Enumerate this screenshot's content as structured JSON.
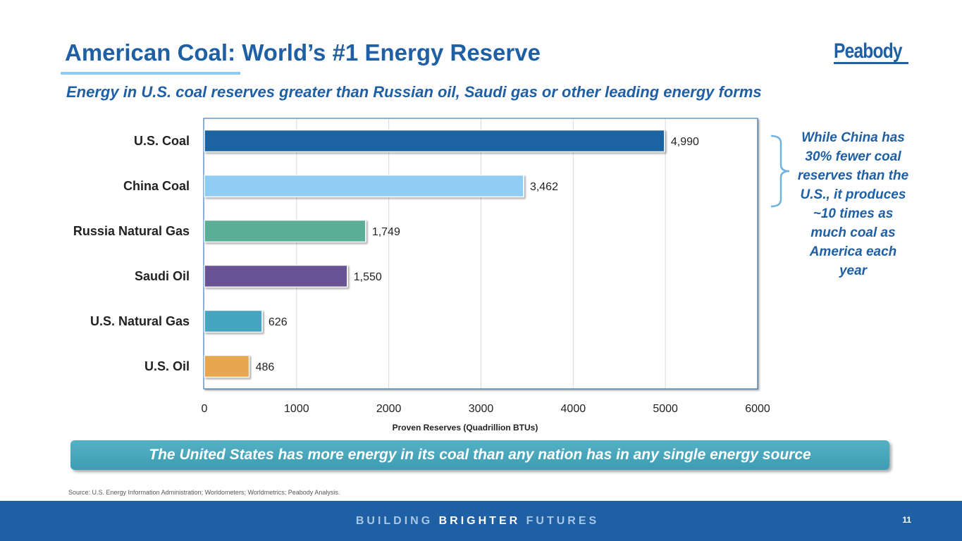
{
  "header": {
    "title": "American Coal: World’s #1 Energy Reserve",
    "subtitle": "Energy in U.S. coal reserves greater than Russian oil, Saudi gas or other leading energy forms",
    "logo_text": "Peabody"
  },
  "colors": {
    "brand_blue": "#1f5fa3",
    "accent_light_blue": "#8fcaf0",
    "banner_teal": "#46a4b9"
  },
  "chart_data": {
    "type": "bar",
    "orientation": "horizontal",
    "categories": [
      "U.S. Coal",
      "China Coal",
      "Russia Natural Gas",
      "Saudi Oil",
      "U.S. Natural Gas",
      "U.S. Oil"
    ],
    "values": [
      4990,
      3462,
      1749,
      1550,
      626,
      486
    ],
    "value_labels": [
      "4,990",
      "3,462",
      "1,749",
      "1,550",
      "626",
      "486"
    ],
    "bar_colors": [
      "#1f64a4",
      "#8fcdf2",
      "#5aae95",
      "#6a5294",
      "#47a6bf",
      "#e7a54f"
    ],
    "xlabel": "Proven Reserves (Quadrillion BTUs)",
    "ylabel": "",
    "xlim": [
      0,
      6000
    ],
    "xticks": [
      "0",
      "1000",
      "2000",
      "3000",
      "4000",
      "5000",
      "6000"
    ],
    "xtick_values": [
      0,
      1000,
      2000,
      3000,
      4000,
      5000,
      6000
    ],
    "grid": true
  },
  "callout": {
    "text": "While China has 30% fewer coal reserves than the U.S., it produces ~10 times as much coal as America each year"
  },
  "banner": {
    "text": "The United States has more energy in its coal than any nation has in any single energy source"
  },
  "source": "Source: U.S. Energy Information Administration; Worldometers; Worldmetrics; Peabody Analysis.",
  "footer": {
    "tagline_part1": "BUILDING ",
    "tagline_part2": "BRIGHTER",
    "tagline_part3": " FUTURES",
    "page_number": "11"
  }
}
